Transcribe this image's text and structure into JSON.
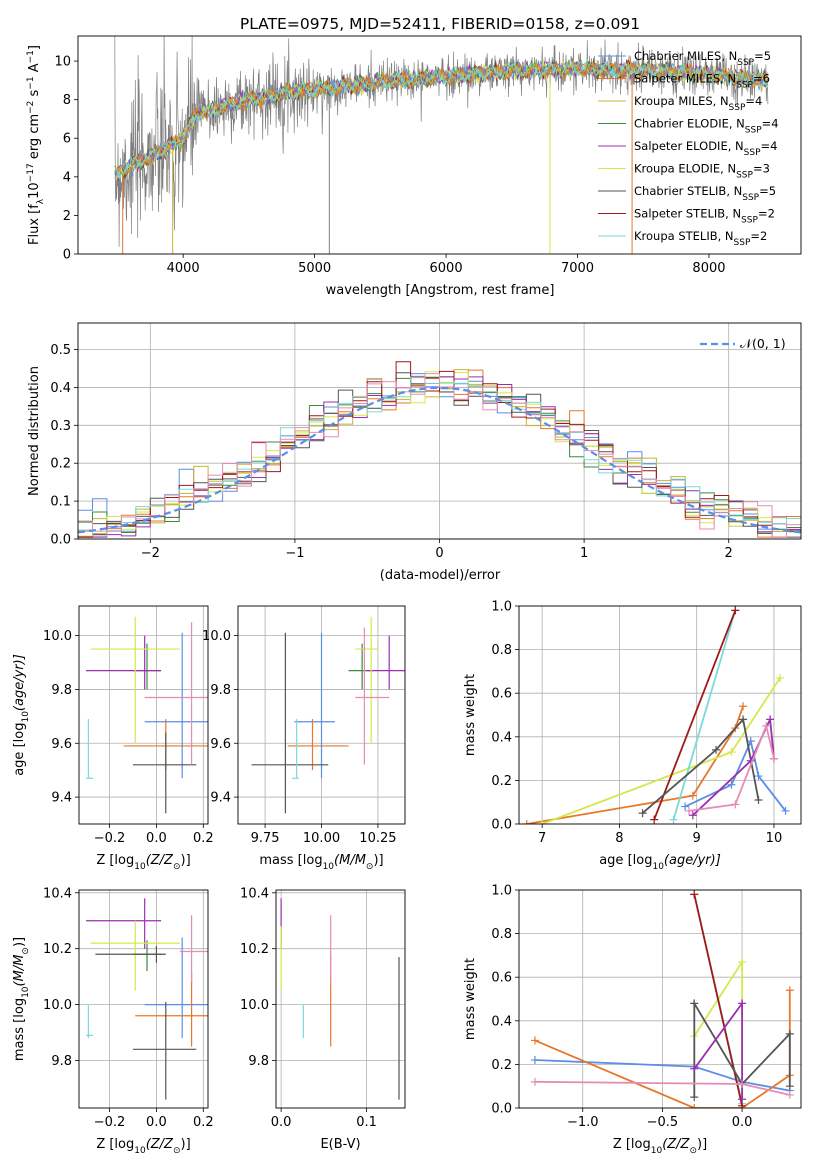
{
  "colors": {
    "chabrier_miles": "#5b8ee6",
    "salpeter_miles": "#e6782a",
    "kroupa_miles": "#c8b432",
    "chabrier_elodie": "#3d8a3d",
    "salpeter_elodie": "#9b2fb0",
    "kroupa_elodie": "#d4e84a",
    "chabrier_stelib": "#555555",
    "salpeter_stelib": "#a01818",
    "kroupa_stelib": "#7adada",
    "pink": "#e68cb4",
    "data_spectrum": "#7f7f7f",
    "normal_curve": "#5b8ee6"
  },
  "chart_data": [
    {
      "id": "spectrum",
      "type": "line",
      "title": "PLATE=0975, MJD=52411, FIBERID=0158, z=0.091",
      "xlabel": "wavelength [Angstrom, rest frame]",
      "ylabel_main": "Flux [f",
      "ylabel_sub": "λ",
      "ylabel_rest": "10",
      "ylabel_sup1": "−17",
      "ylabel_mid": " erg cm",
      "ylabel_sup2": "−2",
      "ylabel_mid2": " s",
      "ylabel_sup3": "−1",
      "ylabel_end": " A",
      "ylabel_sup4": "−1",
      "ylabel_close": "]",
      "xlim": [
        3200,
        8700
      ],
      "ylim": [
        0,
        11.3
      ],
      "xticks": [
        4000,
        5000,
        6000,
        7000,
        8000
      ],
      "yticks": [
        0,
        2,
        4,
        6,
        8,
        10
      ],
      "continuum": [
        [
          3500,
          4.2
        ],
        [
          3600,
          4.6
        ],
        [
          3800,
          5.2
        ],
        [
          3900,
          5.6
        ],
        [
          4000,
          6.0
        ],
        [
          4100,
          7.3
        ],
        [
          4300,
          7.6
        ],
        [
          4500,
          8.0
        ],
        [
          4800,
          8.4
        ],
        [
          5000,
          8.5
        ],
        [
          5500,
          8.9
        ],
        [
          6000,
          9.2
        ],
        [
          6500,
          9.5
        ],
        [
          7000,
          9.6
        ],
        [
          7500,
          9.5
        ],
        [
          8000,
          9.3
        ],
        [
          8400,
          9.0
        ]
      ],
      "legend": [
        {
          "name": "Chabrier MILES, N",
          "sub": "SSP",
          "tail": "=5",
          "color": "chabrier_miles"
        },
        {
          "name": "Salpeter MILES, N",
          "sub": "SSP",
          "tail": "=6",
          "color": "salpeter_miles"
        },
        {
          "name": "Kroupa MILES, N",
          "sub": "SSP",
          "tail": "=4",
          "color": "kroupa_miles"
        },
        {
          "name": "Chabrier ELODIE, N",
          "sub": "SSP",
          "tail": "=4",
          "color": "chabrier_elodie"
        },
        {
          "name": "Salpeter ELODIE, N",
          "sub": "SSP",
          "tail": "=4",
          "color": "salpeter_elodie"
        },
        {
          "name": "Kroupa ELODIE, N",
          "sub": "SSP",
          "tail": "=3",
          "color": "kroupa_elodie"
        },
        {
          "name": "Chabrier STELIB, N",
          "sub": "SSP",
          "tail": "=5",
          "color": "chabrier_stelib"
        },
        {
          "name": "Salpeter STELIB, N",
          "sub": "SSP",
          "tail": "=2",
          "color": "salpeter_stelib"
        },
        {
          "name": "Kroupa STELIB, N",
          "sub": "SSP",
          "tail": "=2",
          "color": "kroupa_stelib"
        }
      ]
    },
    {
      "id": "residuals",
      "type": "line",
      "xlabel": "(data-model)/error",
      "ylabel": "Normed distribution",
      "xlim": [
        -2.5,
        2.5
      ],
      "ylim": [
        0,
        0.57
      ],
      "xticks": [
        -2,
        -1,
        0,
        1,
        2
      ],
      "yticks": [
        0.0,
        0.1,
        0.2,
        0.3,
        0.4,
        0.5
      ],
      "legend_label": "𝒩(0, 1)",
      "bin_width": 0.1,
      "bin_start": -2.5
    },
    {
      "id": "age_vs_Z",
      "type": "scatter",
      "xlabel": "Z [log",
      "xlabel_sub": "10",
      "xlabel_rest": "(Z/Z",
      "xlabel_sub2": "⊙",
      "xlabel_close": ")]",
      "ylabel": "age  [log",
      "ylabel_sub": "10",
      "ylabel_rest": "(age/yr)]",
      "xlim": [
        -0.33,
        0.22
      ],
      "ylim": [
        9.3,
        10.11
      ],
      "xticks": [
        -0.2,
        0.0,
        0.2
      ],
      "yticks": [
        9.4,
        9.6,
        9.8,
        10.0
      ],
      "points": [
        {
          "x": 0.11,
          "y": 9.68,
          "xe": [
            -0.05,
            0.27
          ],
          "ye": [
            9.47,
            10.01
          ],
          "c": "chabrier_miles"
        },
        {
          "x": 0.04,
          "y": 9.59,
          "xe": [
            -0.14,
            0.22
          ],
          "ye": [
            9.5,
            9.69
          ],
          "c": "salpeter_miles"
        },
        {
          "x": -0.04,
          "y": 9.87,
          "xe": [
            -0.1,
            0.02
          ],
          "ye": [
            9.8,
            9.97
          ],
          "c": "chabrier_elodie"
        },
        {
          "x": -0.05,
          "y": 9.87,
          "xe": [
            -0.3,
            0.02
          ],
          "ye": [
            9.8,
            10.0
          ],
          "c": "salpeter_elodie"
        },
        {
          "x": -0.09,
          "y": 9.95,
          "xe": [
            -0.28,
            0.1
          ],
          "ye": [
            9.6,
            10.07
          ],
          "c": "kroupa_elodie"
        },
        {
          "x": 0.04,
          "y": 9.52,
          "xe": [
            -0.1,
            0.17
          ],
          "ye": [
            9.34,
            9.64
          ],
          "c": "chabrier_stelib"
        },
        {
          "x": -0.29,
          "y": 9.47,
          "xe": [
            -0.3,
            -0.27
          ],
          "ye": [
            9.47,
            9.69
          ],
          "c": "kroupa_stelib"
        },
        {
          "x": 0.15,
          "y": 9.77,
          "xe": [
            -0.05,
            0.22
          ],
          "ye": [
            9.52,
            10.05
          ],
          "c": "pink"
        }
      ]
    },
    {
      "id": "age_vs_mass",
      "type": "scatter",
      "xlabel": "mass [log",
      "xlabel_sub": "10",
      "xlabel_rest": "(M/M",
      "xlabel_sub2": "⊙",
      "xlabel_close": ")]",
      "xlim": [
        9.63,
        10.37
      ],
      "ylim": [
        9.3,
        10.11
      ],
      "xticks": [
        9.75,
        10.0,
        10.25
      ],
      "yticks": [
        9.4,
        9.6,
        9.8,
        10.0
      ],
      "points": [
        {
          "x": 10.0,
          "y": 9.68,
          "xe": [
            9.88,
            10.06
          ],
          "ye": [
            9.47,
            10.01
          ],
          "c": "chabrier_miles"
        },
        {
          "x": 9.96,
          "y": 9.59,
          "xe": [
            9.85,
            10.12
          ],
          "ye": [
            9.5,
            9.69
          ],
          "c": "salpeter_miles"
        },
        {
          "x": 10.18,
          "y": 9.87,
          "xe": [
            10.12,
            10.23
          ],
          "ye": [
            9.8,
            9.97
          ],
          "c": "chabrier_elodie"
        },
        {
          "x": 10.3,
          "y": 9.87,
          "xe": [
            10.2,
            10.38
          ],
          "ye": [
            9.8,
            10.0
          ],
          "c": "salpeter_elodie"
        },
        {
          "x": 10.22,
          "y": 9.95,
          "xe": [
            10.15,
            10.25
          ],
          "ye": [
            9.6,
            10.07
          ],
          "c": "kroupa_elodie"
        },
        {
          "x": 9.84,
          "y": 9.52,
          "xe": [
            9.69,
            10.03
          ],
          "ye": [
            9.34,
            10.01
          ],
          "c": "chabrier_stelib"
        },
        {
          "x": 9.89,
          "y": 9.47,
          "xe": [
            9.87,
            9.9
          ],
          "ye": [
            9.47,
            9.69
          ],
          "c": "kroupa_stelib"
        },
        {
          "x": 10.19,
          "y": 9.77,
          "xe": [
            10.15,
            10.3
          ],
          "ye": [
            9.52,
            10.03
          ],
          "c": "pink"
        }
      ]
    },
    {
      "id": "mass_vs_Z",
      "type": "scatter",
      "xlabel": "Z [log",
      "xlabel_sub": "10",
      "xlabel_rest": "(Z/Z",
      "xlabel_sub2": "⊙",
      "xlabel_close": ")]",
      "ylabel": "mass [log",
      "ylabel_sub": "10",
      "ylabel_rest": "(M/M",
      "ylabel_sub2": "⊙",
      "ylabel_close": ")]",
      "xlim": [
        -0.33,
        0.22
      ],
      "ylim": [
        9.63,
        10.41
      ],
      "xticks": [
        -0.2,
        0.0,
        0.2
      ],
      "yticks": [
        9.8,
        10.0,
        10.2,
        10.4
      ],
      "points": [
        {
          "x": 0.11,
          "y": 10.0,
          "xe": [
            -0.05,
            0.27
          ],
          "ye": [
            9.88,
            10.24
          ],
          "c": "chabrier_miles"
        },
        {
          "x": 0.15,
          "y": 9.96,
          "xe": [
            -0.09,
            0.22
          ],
          "ye": [
            9.85,
            10.12
          ],
          "c": "salpeter_miles"
        },
        {
          "x": -0.04,
          "y": 10.18,
          "xe": [
            -0.1,
            0.02
          ],
          "ye": [
            10.12,
            10.23
          ],
          "c": "chabrier_elodie"
        },
        {
          "x": -0.05,
          "y": 10.3,
          "xe": [
            -0.3,
            0.02
          ],
          "ye": [
            10.2,
            10.38
          ],
          "c": "salpeter_elodie"
        },
        {
          "x": -0.09,
          "y": 10.22,
          "xe": [
            -0.28,
            0.1
          ],
          "ye": [
            10.05,
            10.3
          ],
          "c": "kroupa_elodie"
        },
        {
          "x": 0.04,
          "y": 9.84,
          "xe": [
            -0.1,
            0.17
          ],
          "ye": [
            9.66,
            10.01
          ],
          "c": "chabrier_stelib"
        },
        {
          "x": 0.0,
          "y": 10.18,
          "xe": [
            -0.26,
            0.04
          ],
          "ye": [
            10.15,
            10.21
          ],
          "c": "chabrier_stelib"
        },
        {
          "x": -0.29,
          "y": 9.89,
          "xe": [
            -0.3,
            -0.27
          ],
          "ye": [
            9.88,
            10.0
          ],
          "c": "kroupa_stelib"
        },
        {
          "x": 0.15,
          "y": 10.19,
          "xe": [
            0.1,
            0.22
          ],
          "ye": [
            10.08,
            10.32
          ],
          "c": "pink"
        }
      ]
    },
    {
      "id": "mass_vs_ebv",
      "type": "scatter",
      "xlabel": "E(B-V)",
      "xlim": [
        -0.006,
        0.145
      ],
      "ylim": [
        9.63,
        10.41
      ],
      "xticks": [
        0.0,
        0.1
      ],
      "yticks": [
        9.8,
        10.0,
        10.2,
        10.4
      ],
      "points": [
        {
          "x": 0.0,
          "y": 10.3,
          "ye": [
            10.2,
            10.38
          ],
          "c": "salpeter_elodie"
        },
        {
          "x": 0.0,
          "y": 10.17,
          "ye": [
            10.06,
            10.28
          ],
          "c": "kroupa_elodie"
        },
        {
          "x": 0.026,
          "y": 9.92,
          "ye": [
            9.88,
            10.0
          ],
          "c": "kroupa_stelib"
        },
        {
          "x": 0.058,
          "y": 10.02,
          "ye": [
            9.85,
            10.18
          ],
          "c": "salpeter_miles"
        },
        {
          "x": 0.058,
          "y": 10.2,
          "ye": [
            10.08,
            10.32
          ],
          "c": "pink"
        },
        {
          "x": 0.138,
          "y": 9.95,
          "ye": [
            9.66,
            10.17
          ],
          "c": "chabrier_stelib"
        }
      ]
    },
    {
      "id": "weight_vs_age",
      "type": "line",
      "xlabel": "age  [log",
      "xlabel_sub": "10",
      "xlabel_rest": "(age/yr)]",
      "ylabel": "mass weight",
      "xlim": [
        6.7,
        10.35
      ],
      "ylim": [
        0,
        1.0
      ],
      "xticks": [
        7,
        8,
        9,
        10
      ],
      "yticks": [
        0.0,
        0.2,
        0.4,
        0.6,
        0.8,
        1.0
      ],
      "series": [
        {
          "c": "chabrier_miles",
          "x": [
            8.85,
            9.45,
            9.7,
            9.8,
            10.15
          ],
          "y": [
            0.08,
            0.18,
            0.38,
            0.22,
            0.06
          ]
        },
        {
          "c": "salpeter_miles",
          "x": [
            6.8,
            8.95,
            9.5,
            9.6
          ],
          "y": [
            0.0,
            0.13,
            0.44,
            0.54
          ]
        },
        {
          "c": "kroupa_elodie",
          "x": [
            7.0,
            9.45,
            10.08
          ],
          "y": [
            0.0,
            0.33,
            0.67
          ]
        },
        {
          "c": "kroupa_stelib",
          "x": [
            8.7,
            9.5
          ],
          "y": [
            0.02,
            0.98
          ]
        },
        {
          "c": "salpeter_stelib",
          "x": [
            8.45,
            9.5
          ],
          "y": [
            0.02,
            0.98
          ]
        },
        {
          "c": "chabrier_stelib",
          "x": [
            8.3,
            9.25,
            9.6,
            9.8
          ],
          "y": [
            0.05,
            0.34,
            0.48,
            0.11
          ]
        },
        {
          "c": "salpeter_elodie",
          "x": [
            8.95,
            9.7,
            9.95,
            10.0
          ],
          "y": [
            0.04,
            0.29,
            0.48,
            0.3
          ]
        },
        {
          "c": "pink",
          "x": [
            8.9,
            9.5,
            9.9,
            10.0
          ],
          "y": [
            0.06,
            0.09,
            0.45,
            0.3
          ]
        }
      ]
    },
    {
      "id": "weight_vs_Z",
      "type": "line",
      "xlabel": "Z [log",
      "xlabel_sub": "10",
      "xlabel_rest": "(Z/Z",
      "xlabel_sub2": "⊙",
      "xlabel_close": ")]",
      "ylabel": "mass weight",
      "xlim": [
        -1.4,
        0.37
      ],
      "ylim": [
        0,
        1.0
      ],
      "xticks": [
        -1.0,
        -0.5,
        0.0
      ],
      "yticks": [
        0.0,
        0.2,
        0.4,
        0.6,
        0.8,
        1.0
      ],
      "series": [
        {
          "c": "chabrier_miles",
          "x": [
            -1.3,
            -0.3,
            0.0,
            0.3
          ],
          "y": [
            0.22,
            0.19,
            0.12,
            0.08
          ]
        },
        {
          "c": "salpeter_miles",
          "x": [
            -1.3,
            -0.3,
            0.0,
            0.3,
            0.3
          ],
          "y": [
            0.31,
            0.0,
            0.0,
            0.15,
            0.54
          ]
        },
        {
          "c": "kroupa_elodie",
          "x": [
            -0.3,
            0.0,
            0.0
          ],
          "y": [
            0.33,
            0.67,
            0.0
          ]
        },
        {
          "c": "kroupa_stelib",
          "x": [
            -0.3,
            0.0
          ],
          "y": [
            0.98,
            0.02
          ]
        },
        {
          "c": "salpeter_stelib",
          "x": [
            -0.3,
            0.0
          ],
          "y": [
            0.98,
            0.01
          ]
        },
        {
          "c": "chabrier_stelib",
          "x": [
            -0.3,
            -0.3,
            0.0,
            0.3,
            0.3
          ],
          "y": [
            0.05,
            0.48,
            0.11,
            0.34,
            0.1
          ]
        },
        {
          "c": "salpeter_elodie",
          "x": [
            -0.3,
            0.0,
            0.0
          ],
          "y": [
            0.18,
            0.48,
            0.04
          ]
        },
        {
          "c": "pink",
          "x": [
            -1.3,
            0.0,
            0.3
          ],
          "y": [
            0.12,
            0.11,
            0.06
          ]
        }
      ]
    }
  ]
}
